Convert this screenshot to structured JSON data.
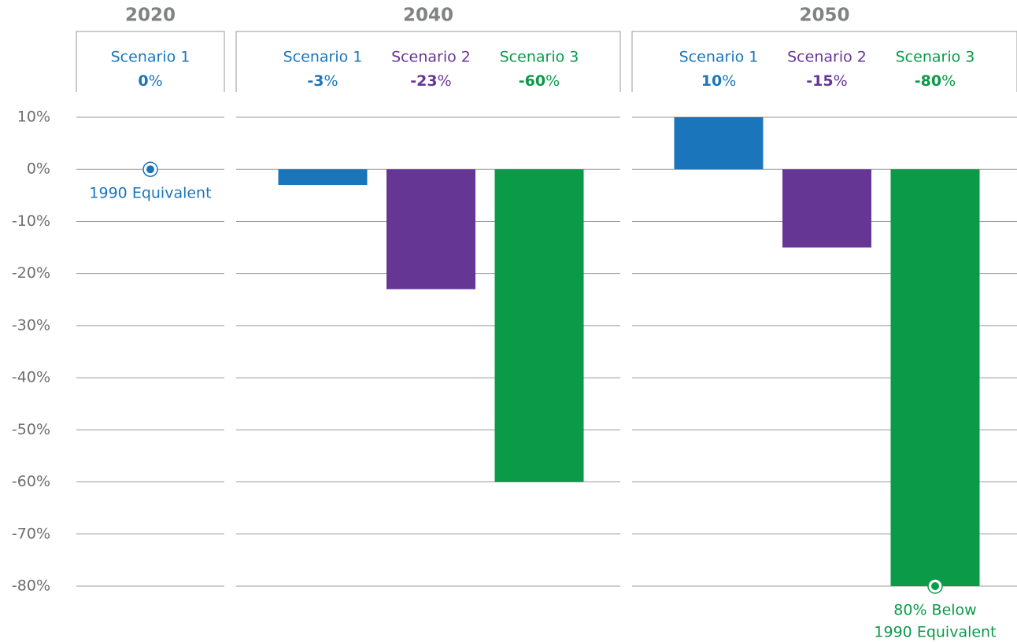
{
  "chart_data": {
    "type": "bar",
    "ylim": [
      -80,
      10
    ],
    "yticks": [
      {
        "value": 10,
        "label": "10%"
      },
      {
        "value": 0,
        "label": "0%"
      },
      {
        "value": -10,
        "label": "-10%"
      },
      {
        "value": -20,
        "label": "-20%"
      },
      {
        "value": -30,
        "label": "-30%"
      },
      {
        "value": -40,
        "label": "-40%"
      },
      {
        "value": -50,
        "label": "-50%"
      },
      {
        "value": -60,
        "label": "-60%"
      },
      {
        "value": -70,
        "label": "-70%"
      },
      {
        "value": -80,
        "label": "-80%"
      }
    ],
    "grid": true,
    "groups": [
      {
        "label": "2020",
        "bars": [
          {
            "name": "Scenario 1",
            "color": "#1b75bb",
            "value": 0,
            "value_label": "0%",
            "annotation": [
              "1990 Equivalent"
            ]
          }
        ]
      },
      {
        "label": "2040",
        "bars": [
          {
            "name": "Scenario 1",
            "color": "#1b75bb",
            "value": -3,
            "value_label": "-3%"
          },
          {
            "name": "Scenario 2",
            "color": "#663695",
            "value": -23,
            "value_label": "-23%"
          },
          {
            "name": "Scenario 3",
            "color": "#0a9a48",
            "value": -60,
            "value_label": "-60%"
          }
        ]
      },
      {
        "label": "2050",
        "bars": [
          {
            "name": "Scenario 1",
            "color": "#1b75bb",
            "value": 10,
            "value_label": "10%"
          },
          {
            "name": "Scenario 2",
            "color": "#663695",
            "value": -15,
            "value_label": "-15%"
          },
          {
            "name": "Scenario 3",
            "color": "#0a9a48",
            "value": -80,
            "value_label": "-80%",
            "annotation": [
              "80% Below",
              "1990 Equivalent"
            ]
          }
        ]
      }
    ]
  }
}
